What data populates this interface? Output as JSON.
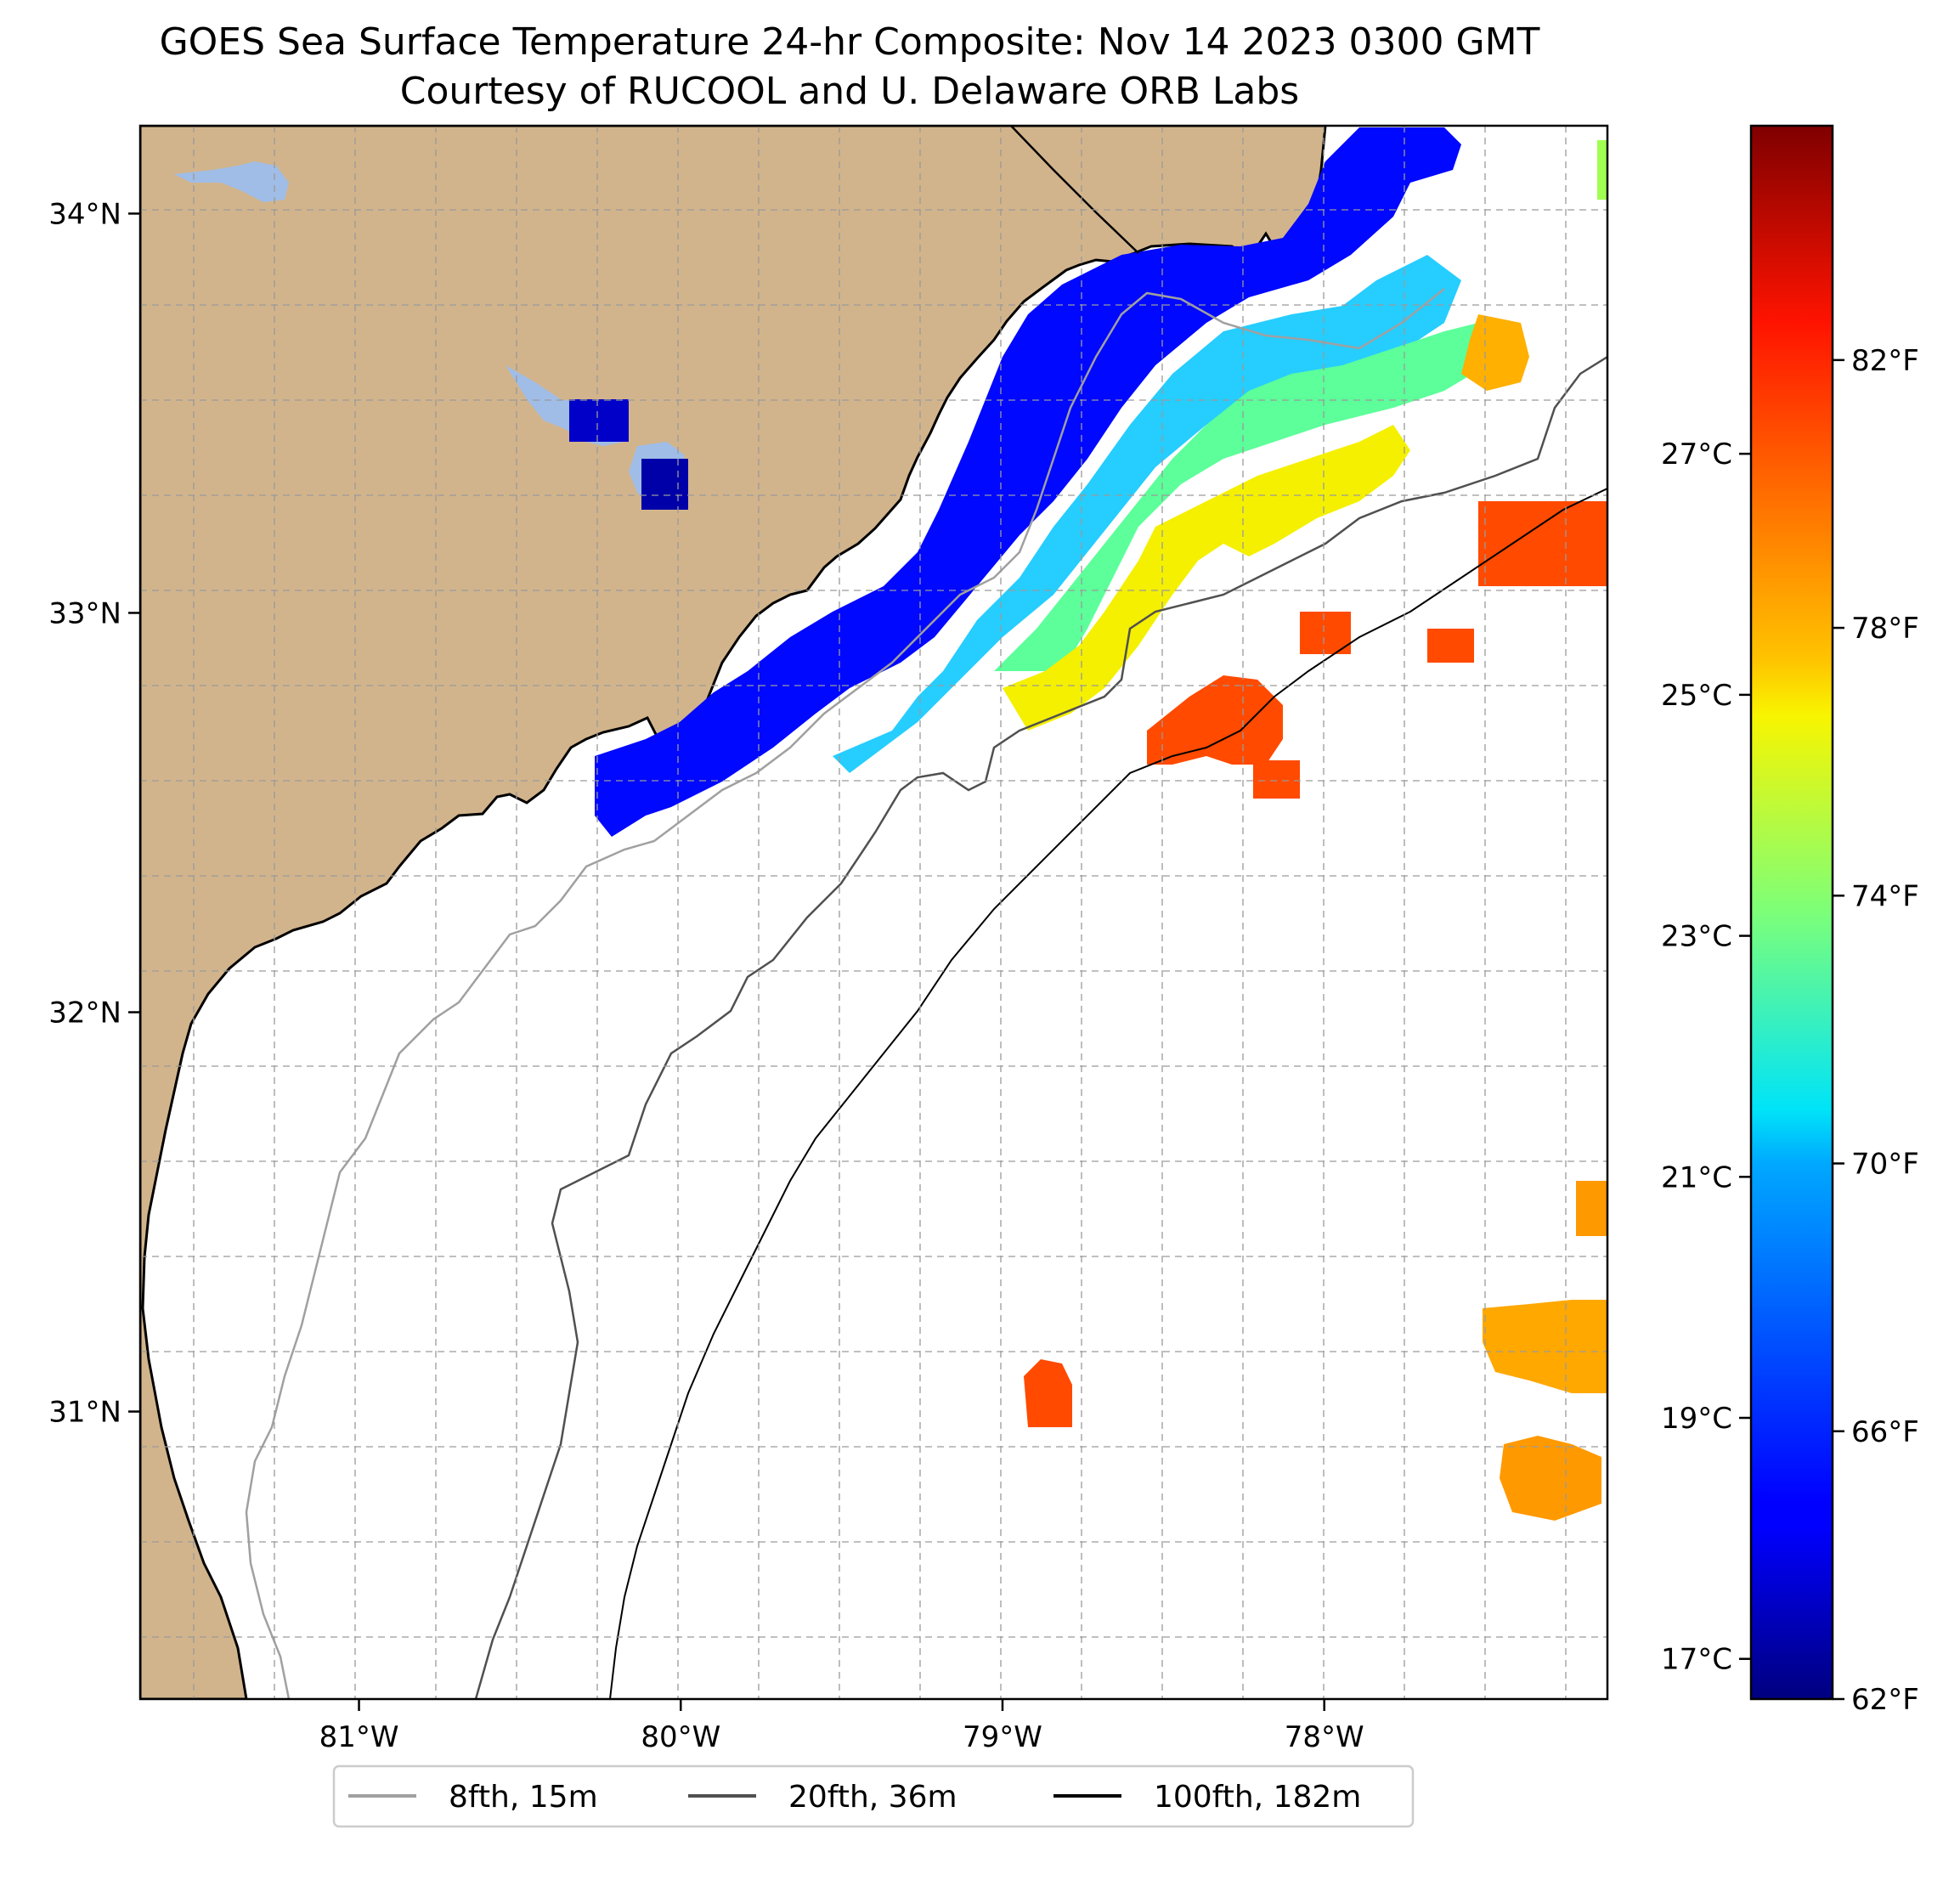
{
  "title": {
    "line1": "GOES Sea Surface Temperature 24-hr Composite: Nov 14 2023 0300 GMT",
    "line2": "Courtesy of RUCOOL and U. Delaware ORB Labs"
  },
  "chart_data": {
    "type": "heatmap",
    "map_extent": {
      "lon": [
        -81.68,
        -77.12
      ],
      "lat": [
        30.28,
        34.22
      ]
    },
    "longitude_ticks": [
      {
        "value": -81,
        "label": "81°W"
      },
      {
        "value": -80,
        "label": "80°W"
      },
      {
        "value": -79,
        "label": "79°W"
      },
      {
        "value": -78,
        "label": "78°W"
      }
    ],
    "latitude_ticks": [
      {
        "value": 31,
        "label": "31°N"
      },
      {
        "value": 32,
        "label": "32°N"
      },
      {
        "value": 33,
        "label": "33°N"
      },
      {
        "value": 34,
        "label": "34°N"
      }
    ],
    "grid": true,
    "colorbar": {
      "colormap": "jet",
      "range_f": [
        62,
        85.5
      ],
      "fahrenheit_ticks": [
        {
          "value": 62,
          "label": "62°F"
        },
        {
          "value": 66,
          "label": "66°F"
        },
        {
          "value": 70,
          "label": "70°F"
        },
        {
          "value": 74,
          "label": "74°F"
        },
        {
          "value": 78,
          "label": "78°F"
        },
        {
          "value": 82,
          "label": "82°F"
        }
      ],
      "celsius_ticks": [
        {
          "value": 17,
          "label": "17°C"
        },
        {
          "value": 19,
          "label": "19°C"
        },
        {
          "value": 21,
          "label": "21°C"
        },
        {
          "value": 23,
          "label": "23°C"
        },
        {
          "value": 25,
          "label": "25°C"
        },
        {
          "value": 27,
          "label": "27°C"
        }
      ]
    },
    "legend": {
      "placement": "bottom-center",
      "entries": [
        {
          "label": "8fth, 15m",
          "color": "#a0a0a0"
        },
        {
          "label": "20fth, 36m",
          "color": "#505050"
        },
        {
          "label": "100fth, 182m",
          "color": "#000000"
        }
      ]
    },
    "colors": {
      "land": "#d2b48c",
      "lakes": "#9fbde6",
      "water": "#ffffff"
    }
  }
}
